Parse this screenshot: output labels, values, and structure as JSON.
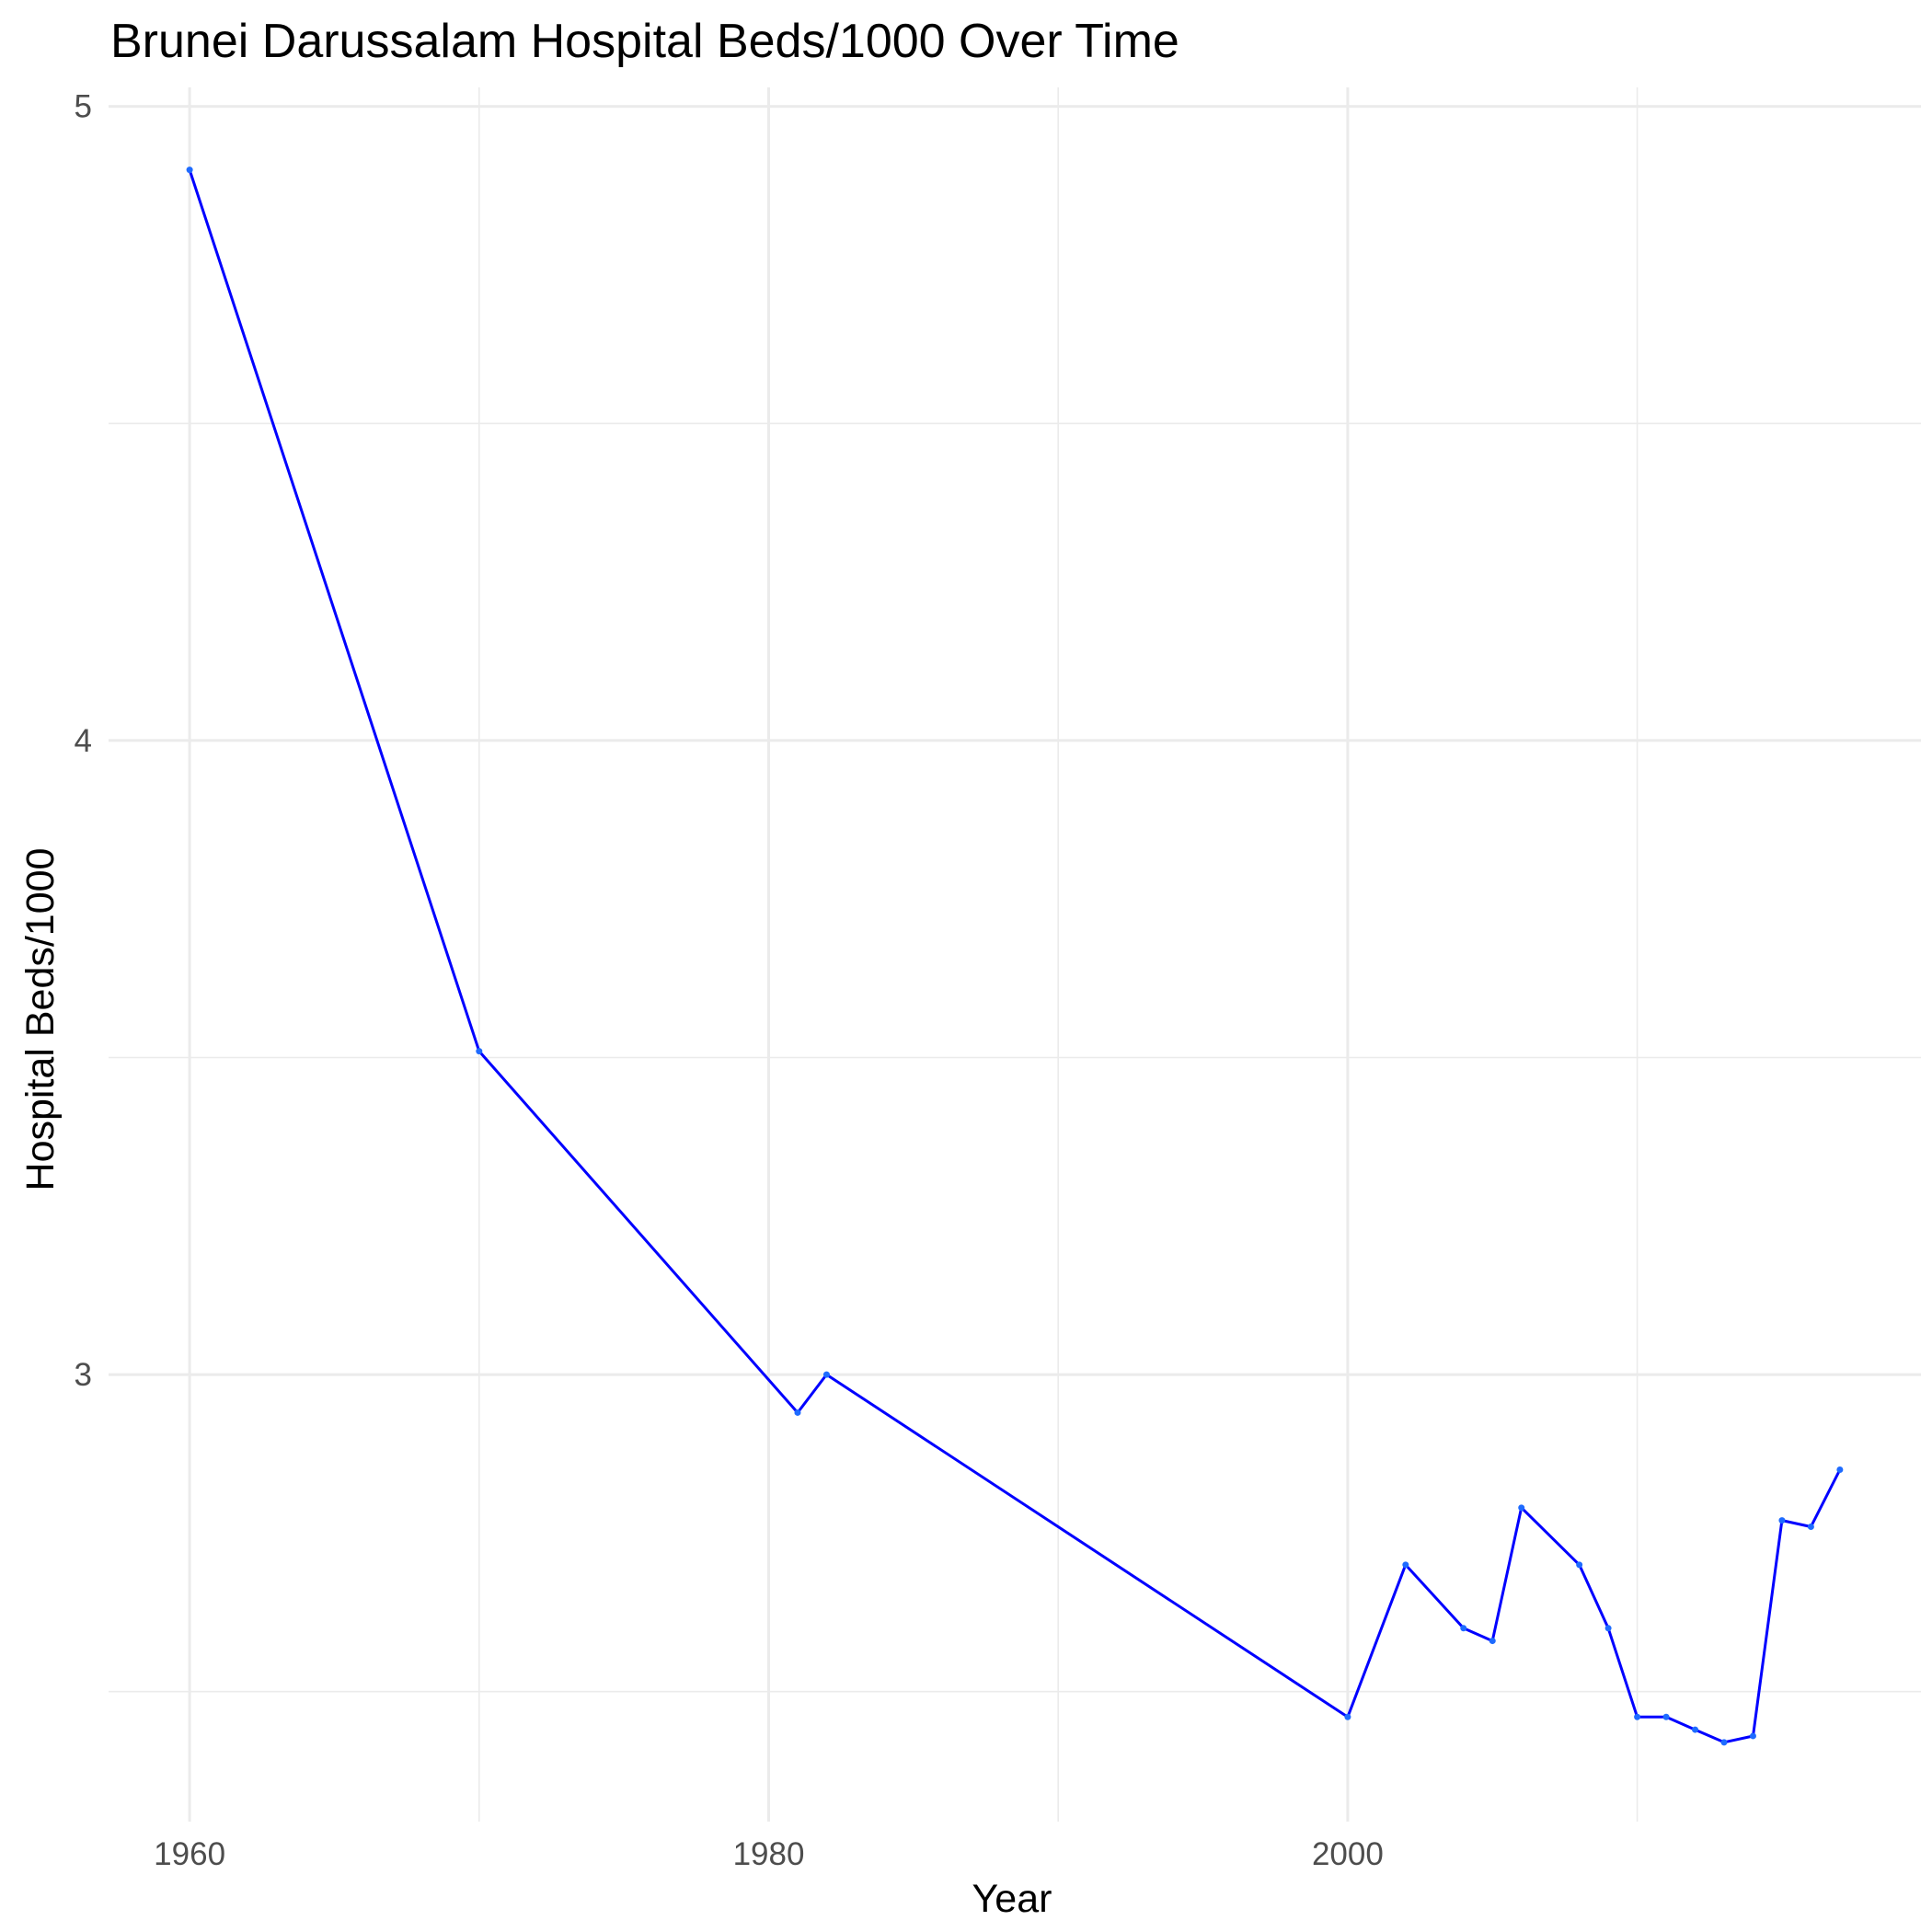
{
  "chart_data": {
    "type": "line",
    "title": "Brunei Darussalam Hospital Beds/1000 Over Time",
    "xlabel": "Year",
    "ylabel": "Hospital Beds/1000",
    "xlim": [
      1957.2,
      2019.8
    ],
    "ylim": [
      2.295,
      5.03
    ],
    "x_ticks": [
      1960,
      1980,
      2000
    ],
    "x_tick_labels": [
      "1960",
      "1980",
      "2000"
    ],
    "x_minor_ticks": [
      1970,
      1990,
      2010
    ],
    "y_ticks": [
      3,
      4,
      5
    ],
    "y_tick_labels": [
      "3",
      "4",
      "5"
    ],
    "y_minor_ticks": [
      2.5,
      3.5,
      4.5
    ],
    "grid": true,
    "legend": "none",
    "series": [
      {
        "color": "#0000ff",
        "x": [
          1960,
          1970,
          1981,
          1982,
          2000,
          2002,
          2004,
          2005,
          2006,
          2008,
          2009,
          2010,
          2011,
          2012,
          2013,
          2014,
          2015,
          2016,
          2017
        ],
        "y": [
          4.9,
          3.51,
          2.94,
          3.0,
          2.46,
          2.7,
          2.6,
          2.58,
          2.79,
          2.7,
          2.6,
          2.46,
          2.46,
          2.44,
          2.42,
          2.43,
          2.77,
          2.76,
          2.85
        ]
      }
    ]
  }
}
